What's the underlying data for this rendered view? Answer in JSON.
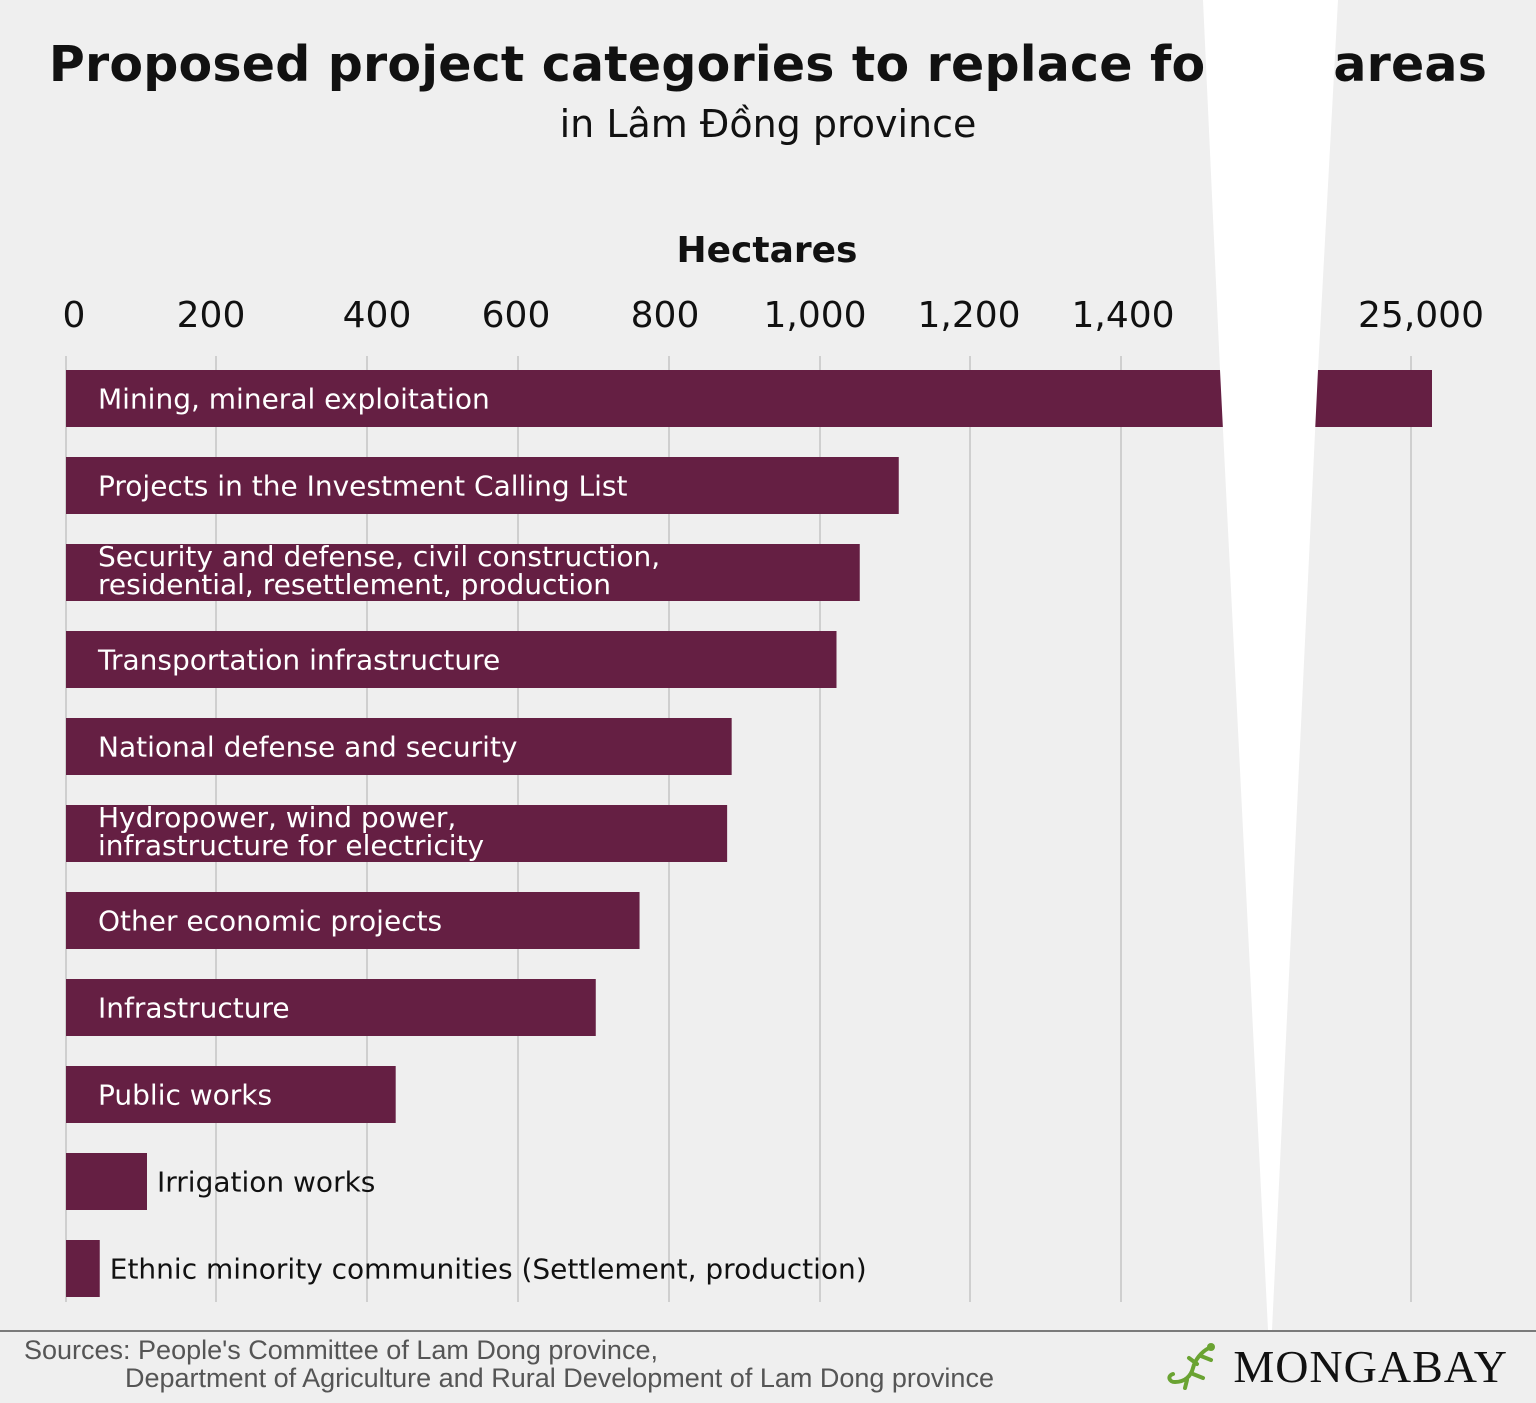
{
  "title": "Proposed project categories to replace forest areas",
  "subtitle": "in Lâm Đồng province",
  "chart_data": {
    "type": "bar",
    "orientation": "horizontal",
    "xlabel": "Hectares",
    "ylabel": "",
    "axis_break": {
      "from": 1500,
      "to": 25000
    },
    "ticks": [
      {
        "value": 0,
        "label": "0"
      },
      {
        "value": 200,
        "label": "200"
      },
      {
        "value": 400,
        "label": "400"
      },
      {
        "value": 600,
        "label": "600"
      },
      {
        "value": 800,
        "label": "800"
      },
      {
        "value": 1000,
        "label": "1,000"
      },
      {
        "value": 1200,
        "label": "1,200"
      },
      {
        "value": 1400,
        "label": "1,400"
      },
      {
        "value": 25000,
        "label": "25,000"
      }
    ],
    "categories": [
      "Mining, mineral exploitation",
      "Projects in the Investment Calling List",
      "Security and defense, civil construction,\nresidential, resettlement, production",
      "Transportation infrastructure",
      "National defense and security",
      "Hydropower, wind power,\ninfrastructure for electricity",
      "Other economic projects",
      "Infrastructure",
      "Public works",
      "Irrigation works",
      "Ethnic minority communities (Settlement, production)"
    ],
    "values": [
      25100,
      1105,
      1053,
      1022,
      883,
      877,
      761,
      703,
      438,
      108,
      45
    ],
    "grid": true,
    "colors": {
      "bar": "#651f43",
      "label_inside": "#ffffff",
      "label_outside": "#111111",
      "grid": "#cfcfcf"
    }
  },
  "sources": {
    "line1": "Sources: People's Committee of Lam Dong province,",
    "line2": "Department of Agriculture and Rural Development of Lam Dong province"
  },
  "brand": {
    "name": "MONGABAY",
    "icon": "gecko-icon",
    "icon_color": "#6aa332"
  }
}
